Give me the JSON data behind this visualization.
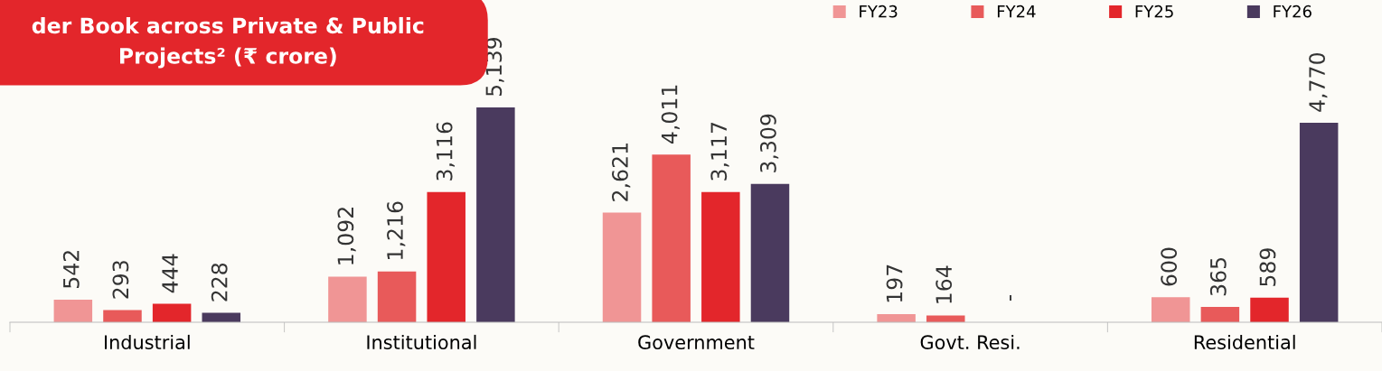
{
  "chart_data": {
    "type": "bar",
    "title": "der Book across Private & Public\nProjects² (₹ crore)",
    "categories": [
      "Industrial",
      "Institutional",
      "Government",
      "Govt. Resi.",
      "Residential"
    ],
    "series": [
      {
        "name": "FY23",
        "color": "#f09595",
        "values": [
          542,
          1092,
          2621,
          197,
          600
        ],
        "value_labels": [
          "542",
          "1,092",
          "2,621",
          "197",
          "600"
        ]
      },
      {
        "name": "FY24",
        "color": "#e85a5a",
        "values": [
          293,
          1216,
          4011,
          164,
          365
        ],
        "value_labels": [
          "293",
          "1,216",
          "4,011",
          "164",
          "365"
        ]
      },
      {
        "name": "FY25",
        "color": "#e3262b",
        "values": [
          444,
          3116,
          3117,
          null,
          589
        ],
        "value_labels": [
          "444",
          "3,116",
          "3,117",
          null,
          "589"
        ]
      },
      {
        "name": "FY26",
        "color": "#4a3a5e",
        "values": [
          228,
          5139,
          3309,
          null,
          4770
        ],
        "value_labels": [
          "228",
          "5,139",
          "3,309",
          null,
          "4,770"
        ]
      }
    ],
    "annotations": [
      "-"
    ],
    "legend": "top right",
    "grid": false
  }
}
